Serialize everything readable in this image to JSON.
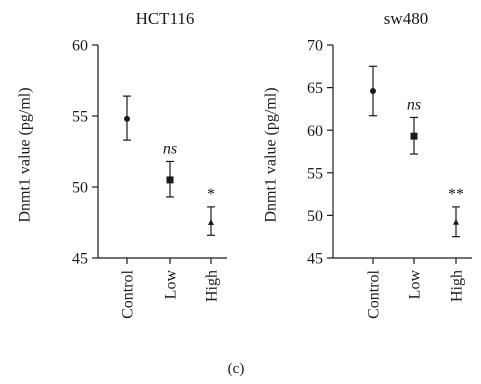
{
  "chart_data": [
    {
      "type": "scatter",
      "title": "HCT116",
      "ylabel": "Dnmt1 value (pg/ml)",
      "xlabel": "",
      "categories": [
        "Control",
        "Low",
        "High"
      ],
      "ylim": [
        45,
        60
      ],
      "yticks": [
        45,
        50,
        55,
        60
      ],
      "means": [
        54.8,
        50.5,
        47.5
      ],
      "err_low": [
        53.3,
        49.3,
        46.6
      ],
      "err_high": [
        56.4,
        51.8,
        48.6
      ],
      "markers": [
        "circle",
        "square",
        "triangle"
      ],
      "annotations": [
        "",
        "ns",
        "*"
      ],
      "annotation_italic": [
        false,
        true,
        false
      ],
      "grid": false
    },
    {
      "type": "scatter",
      "title": "sw480",
      "ylabel": "Dnmt1 value (pg/ml)",
      "xlabel": "",
      "categories": [
        "Control",
        "Low",
        "High"
      ],
      "ylim": [
        45,
        70
      ],
      "yticks": [
        45,
        50,
        55,
        60,
        65,
        70
      ],
      "means": [
        64.6,
        59.3,
        49.2
      ],
      "err_low": [
        61.7,
        57.2,
        47.5
      ],
      "err_high": [
        67.5,
        61.5,
        51.0
      ],
      "markers": [
        "circle",
        "square",
        "triangle"
      ],
      "annotations": [
        "",
        "ns",
        "**"
      ],
      "annotation_italic": [
        false,
        true,
        false
      ],
      "grid": false
    }
  ],
  "caption": "(c)",
  "colors": {
    "ink": "#1a1a1a"
  }
}
